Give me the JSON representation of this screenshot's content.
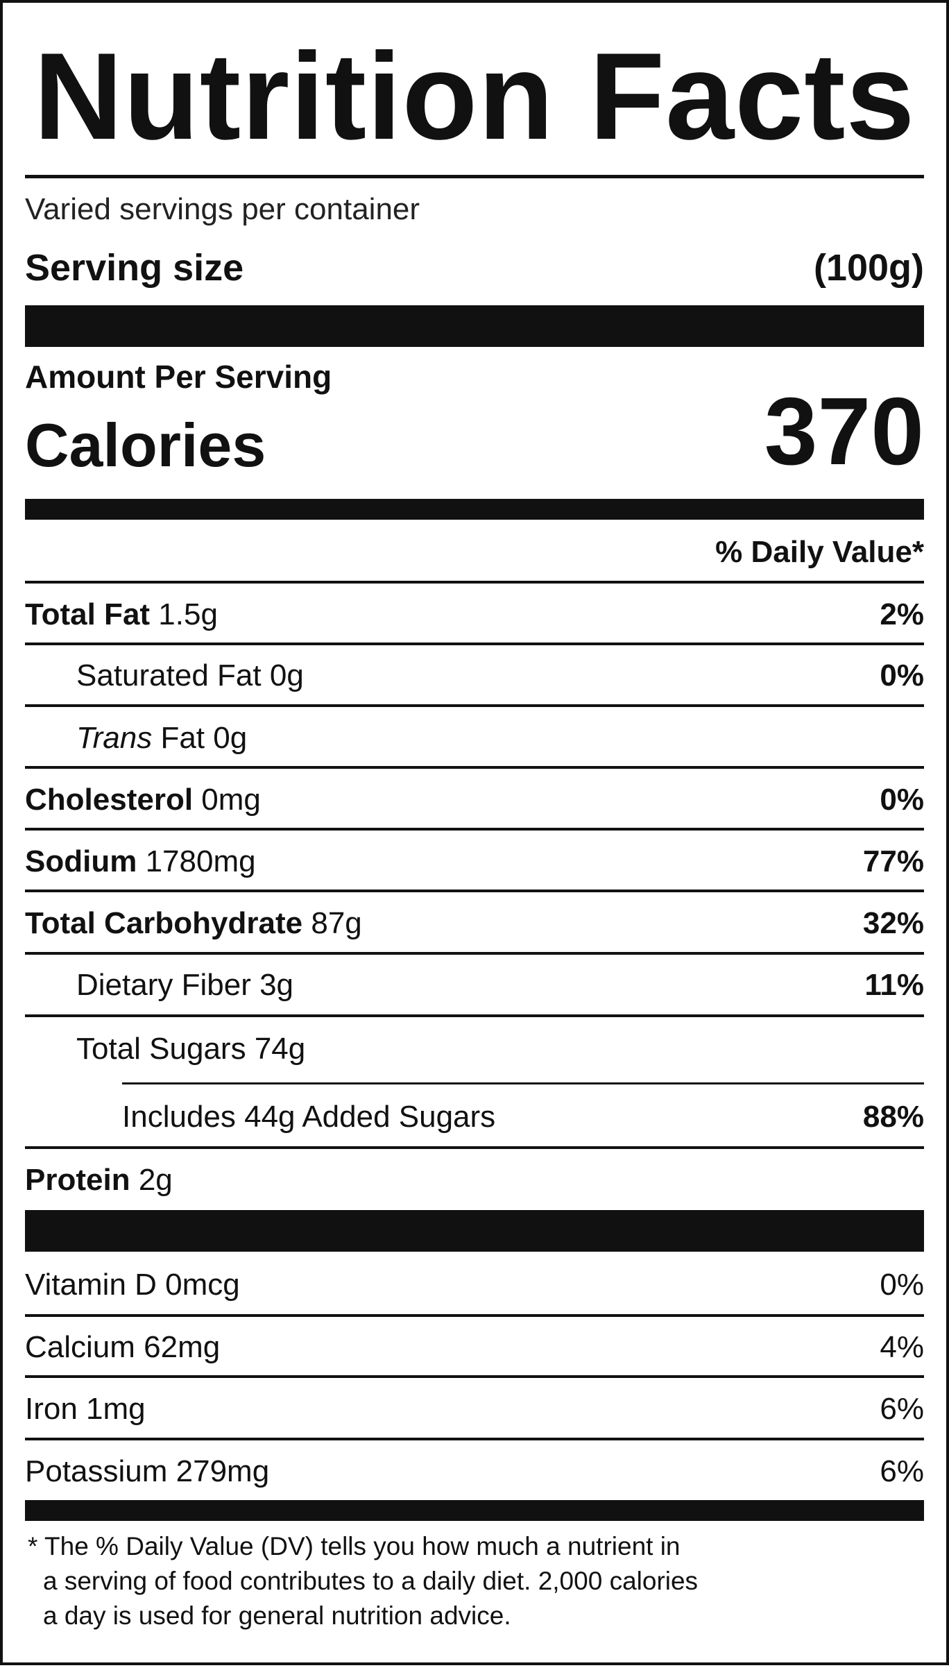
{
  "title": "Nutrition Facts",
  "servings_per_container": "Varied servings per container",
  "serving_size": {
    "label": "Serving size",
    "value": "(100g)"
  },
  "amount_per_serving": "Amount Per Serving",
  "calories": {
    "label": "Calories",
    "value": "370"
  },
  "daily_value_header": "% Daily Value*",
  "nutrients": {
    "total_fat": {
      "name": "Total Fat",
      "amount": "1.5g",
      "dv": "2%"
    },
    "saturated_fat": {
      "name": "Saturated Fat",
      "amount": "0g",
      "dv": "0%"
    },
    "trans_fat": {
      "name_italic": "Trans",
      "name": "Fat",
      "amount": "0g"
    },
    "cholesterol": {
      "name": "Cholesterol",
      "amount": "0mg",
      "dv": "0%"
    },
    "sodium": {
      "name": "Sodium",
      "amount": "1780mg",
      "dv": "77%"
    },
    "total_carbohydrate": {
      "name": "Total Carbohydrate",
      "amount": "87g",
      "dv": "32%"
    },
    "dietary_fiber": {
      "name": "Dietary Fiber",
      "amount": "3g",
      "dv": "11%"
    },
    "total_sugars": {
      "name": "Total Sugars",
      "amount": "74g"
    },
    "added_sugars": {
      "text": "Includes 44g Added Sugars",
      "dv": "88%"
    },
    "protein": {
      "name": "Protein",
      "amount": "2g"
    }
  },
  "vitamins": {
    "vitamin_d": {
      "text": "Vitamin D 0mcg",
      "dv": "0%"
    },
    "calcium": {
      "text": "Calcium 62mg",
      "dv": "4%"
    },
    "iron": {
      "text": "Iron 1mg",
      "dv": "6%"
    },
    "potassium": {
      "text": "Potassium 279mg",
      "dv": "6%"
    }
  },
  "footnote": {
    "line1": "* The % Daily Value (DV) tells you how much a nutrient in",
    "line2": "a serving of food contributes to a daily diet. 2,000 calories",
    "line3": "a day is used for general nutrition advice."
  }
}
